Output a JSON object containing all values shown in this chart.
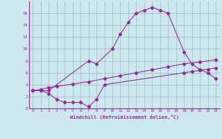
{
  "line1_x": [
    0,
    1,
    2,
    7,
    8,
    10,
    11,
    12,
    13,
    14,
    15,
    16,
    17,
    19,
    20,
    21,
    22,
    23
  ],
  "line1_y": [
    3.0,
    3.0,
    3.0,
    8.0,
    7.5,
    10.0,
    12.5,
    14.5,
    16.0,
    16.5,
    17.0,
    16.5,
    16.0,
    9.5,
    7.5,
    6.5,
    6.0,
    5.0
  ],
  "line2_x": [
    0,
    1,
    2,
    3,
    5,
    7,
    9,
    11,
    13,
    15,
    17,
    19,
    21,
    23
  ],
  "line2_y": [
    3.0,
    3.2,
    3.5,
    3.7,
    4.1,
    4.5,
    5.0,
    5.5,
    6.0,
    6.5,
    7.0,
    7.5,
    7.8,
    8.2
  ],
  "line3_x": [
    0,
    1,
    2,
    3,
    4,
    5,
    6,
    7,
    8,
    9,
    19,
    20,
    21,
    22,
    23
  ],
  "line3_y": [
    3.0,
    3.0,
    2.5,
    1.5,
    1.0,
    1.0,
    1.0,
    0.3,
    1.5,
    4.0,
    6.0,
    6.2,
    6.4,
    6.6,
    6.8
  ],
  "line_color": "#952895",
  "bg_color": "#cce8ee",
  "grid_color": "#9ab8be",
  "xlabel": "Windchill (Refroidissement éolien,°C)",
  "xlim": [
    -0.5,
    23.5
  ],
  "ylim": [
    0,
    18
  ],
  "xticks": [
    0,
    1,
    2,
    3,
    4,
    5,
    6,
    7,
    8,
    9,
    10,
    11,
    12,
    13,
    14,
    15,
    16,
    17,
    18,
    19,
    20,
    21,
    22,
    23
  ],
  "yticks": [
    0,
    2,
    4,
    6,
    8,
    10,
    12,
    14,
    16
  ]
}
